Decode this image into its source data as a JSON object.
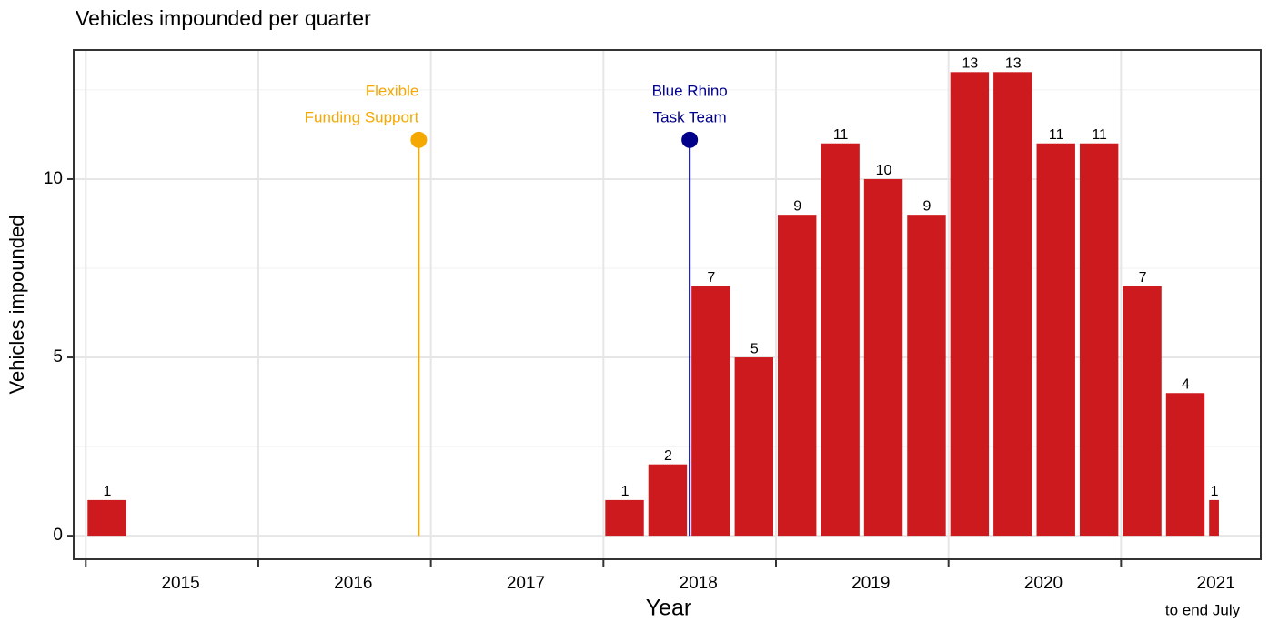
{
  "chart_data": {
    "type": "bar",
    "title": "Vehicles impounded per quarter",
    "x_label": "Year",
    "x_note": "to end July",
    "y_label": "Vehicles impounded",
    "color": "#cc1a1f",
    "x": [
      2015,
      2018,
      2018.25,
      2018.5,
      2018.75,
      2019,
      2019.25,
      2019.5,
      2019.75,
      2020,
      2020.25,
      2020.5,
      2020.75,
      2021,
      2021.25,
      2021.5
    ],
    "widths": [
      0.25,
      0.25,
      0.25,
      0.25,
      0.25,
      0.25,
      0.25,
      0.25,
      0.25,
      0.25,
      0.25,
      0.25,
      0.25,
      0.25,
      0.25,
      0.083
    ],
    "values": [
      1,
      1,
      2,
      7,
      5,
      9,
      11,
      10,
      9,
      13,
      13,
      11,
      11,
      7,
      4,
      1
    ],
    "xlim": [
      2014.93,
      2021.81
    ],
    "xticks": [
      2015,
      2016,
      2017,
      2018,
      2019,
      2020,
      2021
    ],
    "ylim": [
      -0.66,
      13.62
    ],
    "yticks": [
      0,
      5,
      10
    ],
    "grid": true,
    "events": [
      {
        "label": [
          "Flexible",
          "Funding Support"
        ],
        "x": 2016.93,
        "y": 11.1,
        "color": "#f5a800",
        "align": "end"
      },
      {
        "label": [
          "Blue Rhino",
          "Task Team"
        ],
        "x": 2018.5,
        "y": 11.1,
        "color": "#00008b",
        "align": "middle"
      }
    ]
  }
}
